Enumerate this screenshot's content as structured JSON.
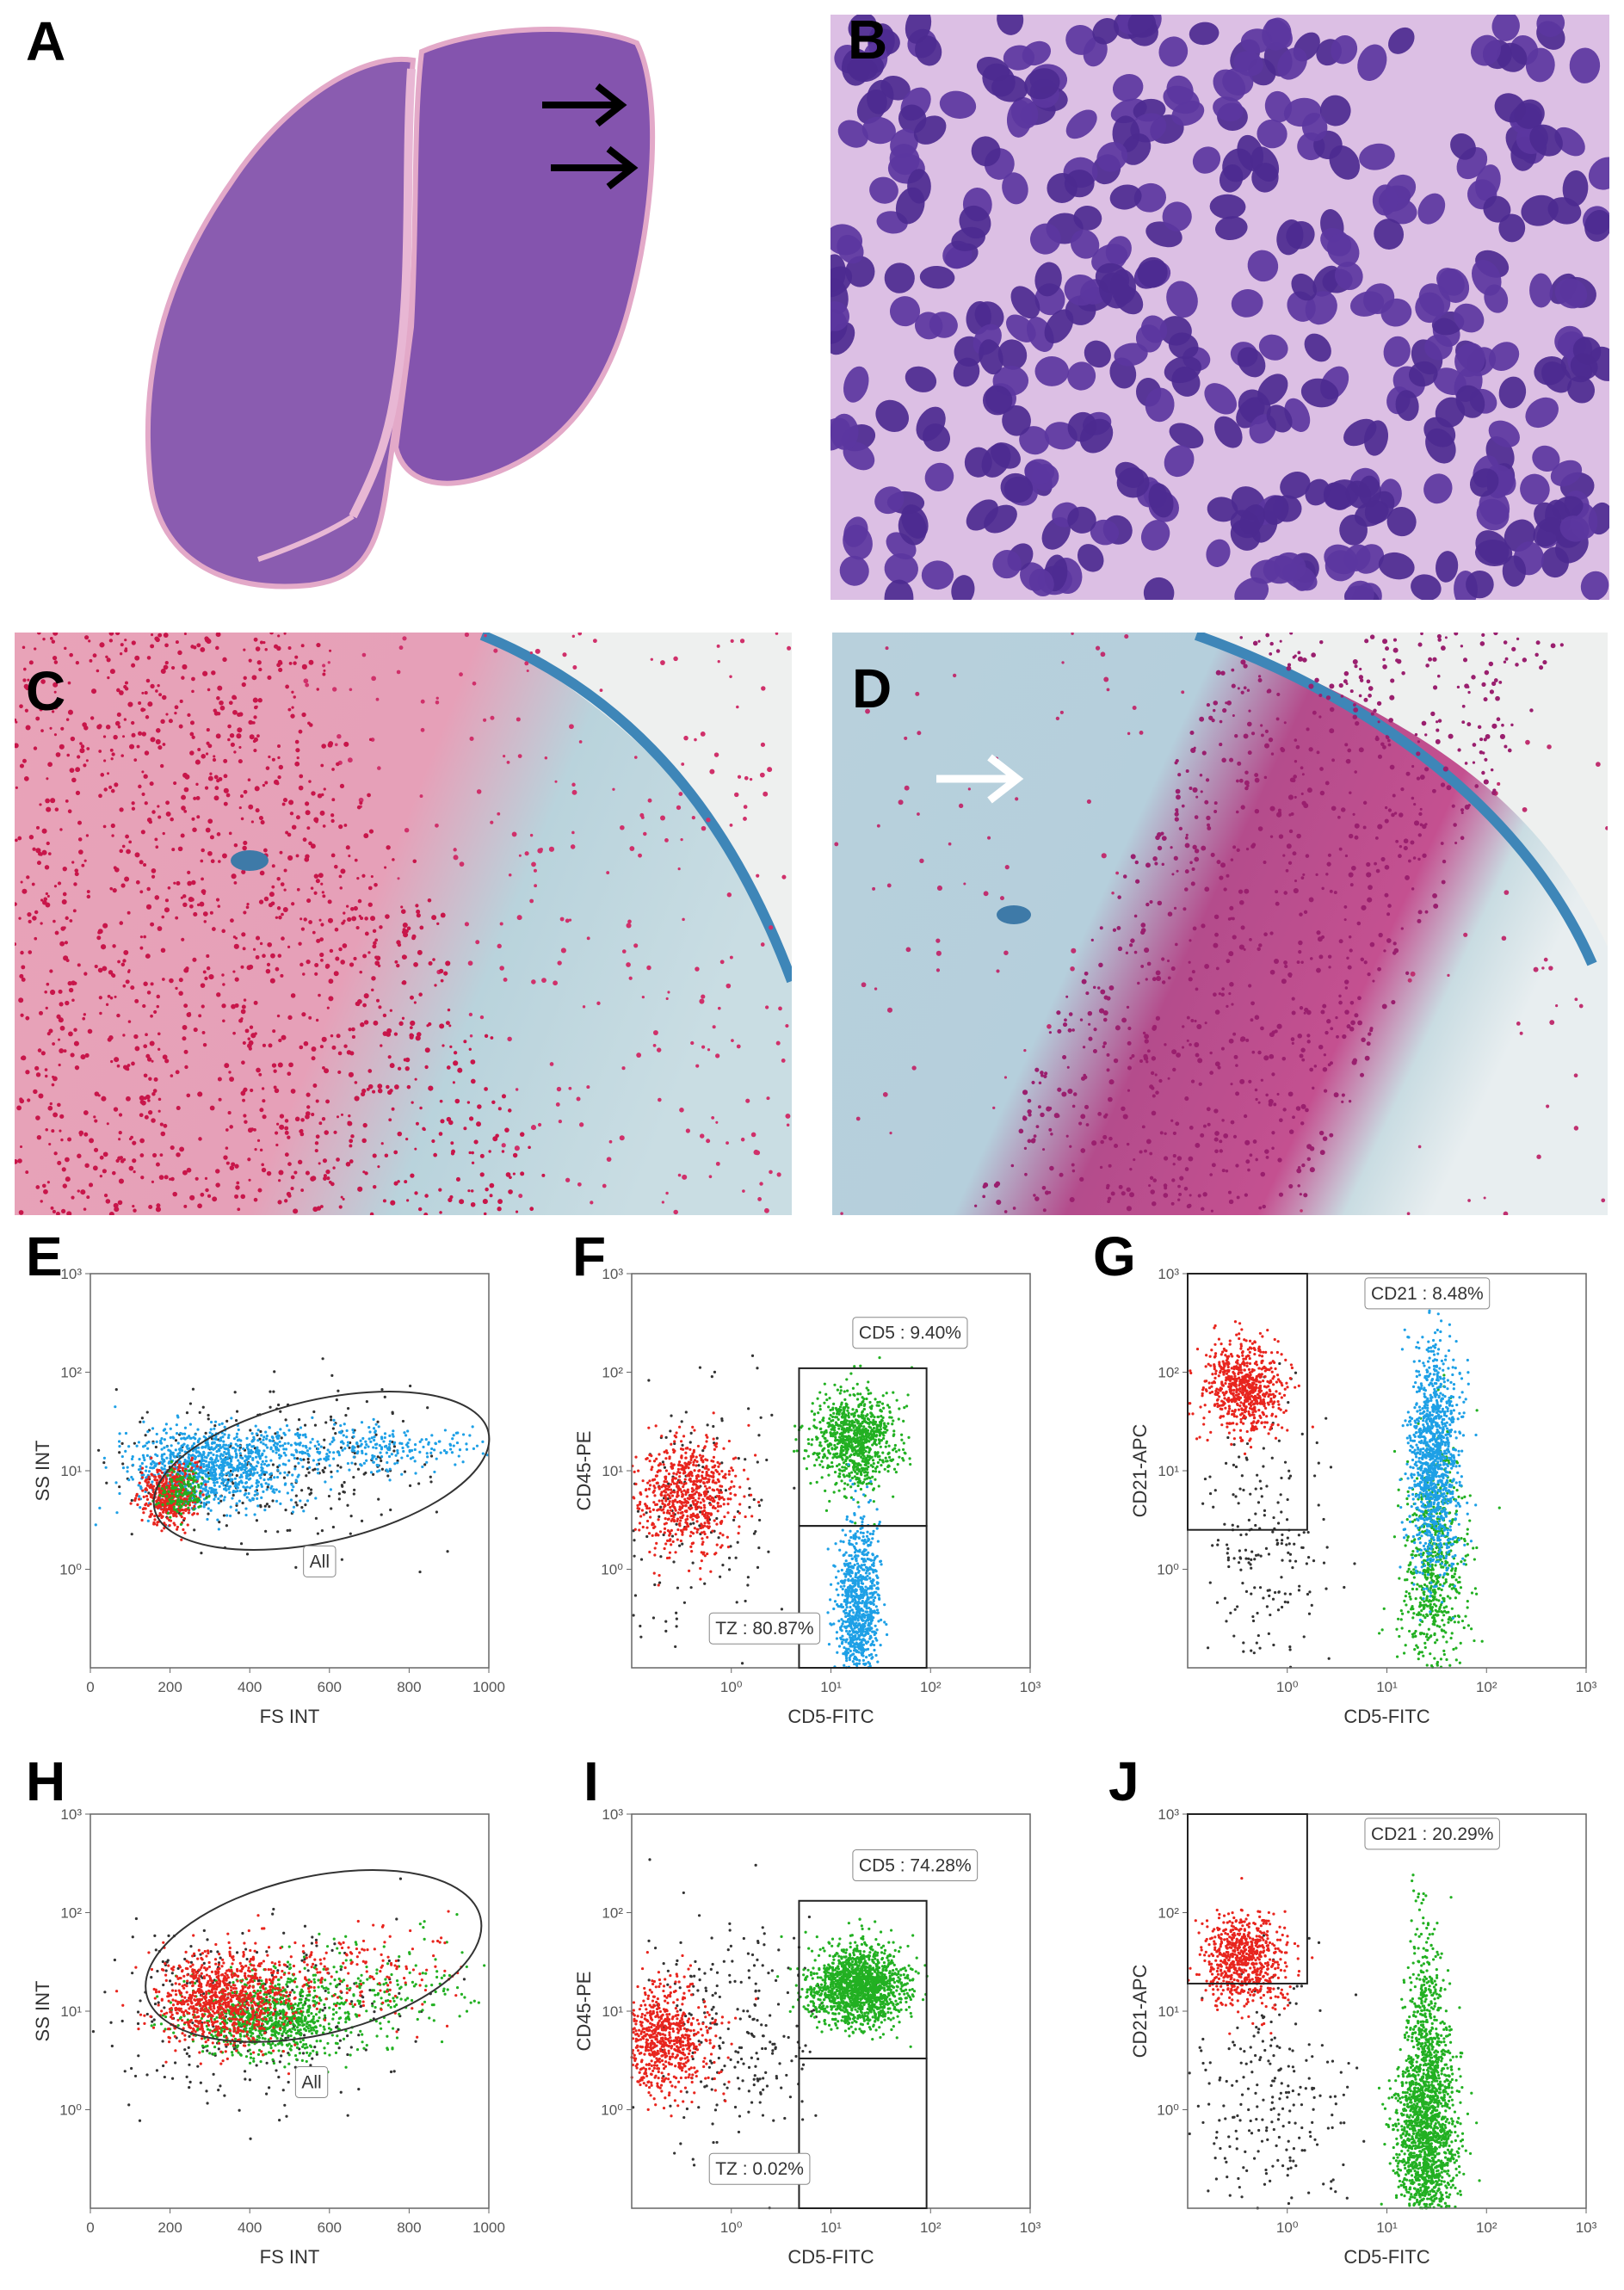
{
  "panels": [
    {
      "label": "A"
    },
    {
      "label": "B"
    },
    {
      "label": "C"
    },
    {
      "label": "D"
    },
    {
      "label": "E",
      "x_label": "FS INT",
      "y_label": "SS INT",
      "xlog": false,
      "ylog": true,
      "xlim": [
        0,
        1000
      ],
      "ylim": [
        0.1,
        1000
      ],
      "xticks": [
        0,
        200,
        400,
        600,
        800,
        1000
      ],
      "yticks": [
        {
          "value": 1,
          "label": "10⁰"
        },
        {
          "value": 10,
          "label": "10¹"
        },
        {
          "value": 100,
          "label": "10²"
        },
        {
          "value": 1000,
          "label": "10³"
        }
      ],
      "gates": [
        "All"
      ]
    },
    {
      "label": "F",
      "x_label": "CD5-FITC",
      "y_label": "CD45-PE",
      "xlog": true,
      "ylog": true,
      "xlim": [
        0.1,
        1000
      ],
      "ylim": [
        0.1,
        1000
      ],
      "xticks": [
        {
          "value": 1,
          "label": "10⁰"
        },
        {
          "value": 10,
          "label": "10¹"
        },
        {
          "value": 100,
          "label": "10²"
        },
        {
          "value": 1000,
          "label": "10³"
        }
      ],
      "yticks": [
        {
          "value": 1,
          "label": "10⁰"
        },
        {
          "value": 10,
          "label": "10¹"
        },
        {
          "value": 100,
          "label": "10²"
        },
        {
          "value": 1000,
          "label": "10³"
        }
      ],
      "gates": [
        "CD5 : 9.40%",
        "TZ : 80.87%"
      ]
    },
    {
      "label": "G",
      "x_label": "CD5-FITC",
      "y_label": "CD21-APC",
      "xlog": true,
      "ylog": true,
      "xlim": [
        0.1,
        1000
      ],
      "ylim": [
        0.1,
        1000
      ],
      "xticks": [
        {
          "value": 1,
          "label": "10⁰"
        },
        {
          "value": 10,
          "label": "10¹"
        },
        {
          "value": 100,
          "label": "10²"
        },
        {
          "value": 1000,
          "label": "10³"
        }
      ],
      "yticks": [
        {
          "value": 1,
          "label": "10⁰"
        },
        {
          "value": 10,
          "label": "10¹"
        },
        {
          "value": 100,
          "label": "10²"
        },
        {
          "value": 1000,
          "label": "10³"
        }
      ],
      "gates": [
        "CD21 : 8.48%"
      ]
    },
    {
      "label": "H",
      "x_label": "FS INT",
      "y_label": "SS INT",
      "xlog": false,
      "ylog": true,
      "xlim": [
        0,
        1000
      ],
      "ylim": [
        0.1,
        1000
      ],
      "xticks": [
        0,
        200,
        400,
        600,
        800,
        1000
      ],
      "yticks": [
        {
          "value": 1,
          "label": "10⁰"
        },
        {
          "value": 10,
          "label": "10¹"
        },
        {
          "value": 100,
          "label": "10²"
        },
        {
          "value": 1000,
          "label": "10³"
        }
      ],
      "gates": [
        "All"
      ]
    },
    {
      "label": "I",
      "x_label": "CD5-FITC",
      "y_label": "CD45-PE",
      "xlog": true,
      "ylog": true,
      "xlim": [
        0.1,
        1000
      ],
      "ylim": [
        0.1,
        1000
      ],
      "xticks": [
        {
          "value": 1,
          "label": "10⁰"
        },
        {
          "value": 10,
          "label": "10¹"
        },
        {
          "value": 100,
          "label": "10²"
        },
        {
          "value": 1000,
          "label": "10³"
        }
      ],
      "yticks": [
        {
          "value": 1,
          "label": "10⁰"
        },
        {
          "value": 10,
          "label": "10¹"
        },
        {
          "value": 100,
          "label": "10²"
        },
        {
          "value": 1000,
          "label": "10³"
        }
      ],
      "gates": [
        "CD5 : 74.28%",
        "TZ : 0.02%"
      ]
    },
    {
      "label": "J",
      "x_label": "CD5-FITC",
      "y_label": "CD21-APC",
      "xlog": true,
      "ylog": true,
      "xlim": [
        0.1,
        1000
      ],
      "ylim": [
        0.1,
        1000
      ],
      "xticks": [
        {
          "value": 1,
          "label": "10⁰"
        },
        {
          "value": 10,
          "label": "10¹"
        },
        {
          "value": 100,
          "label": "10²"
        },
        {
          "value": 1000,
          "label": "10³"
        }
      ],
      "yticks": [
        {
          "value": 1,
          "label": "10⁰"
        },
        {
          "value": 10,
          "label": "10¹"
        },
        {
          "value": 100,
          "label": "10²"
        },
        {
          "value": 1000,
          "label": "10³"
        }
      ],
      "gates": [
        "CD21 : 20.29%"
      ]
    }
  ]
}
